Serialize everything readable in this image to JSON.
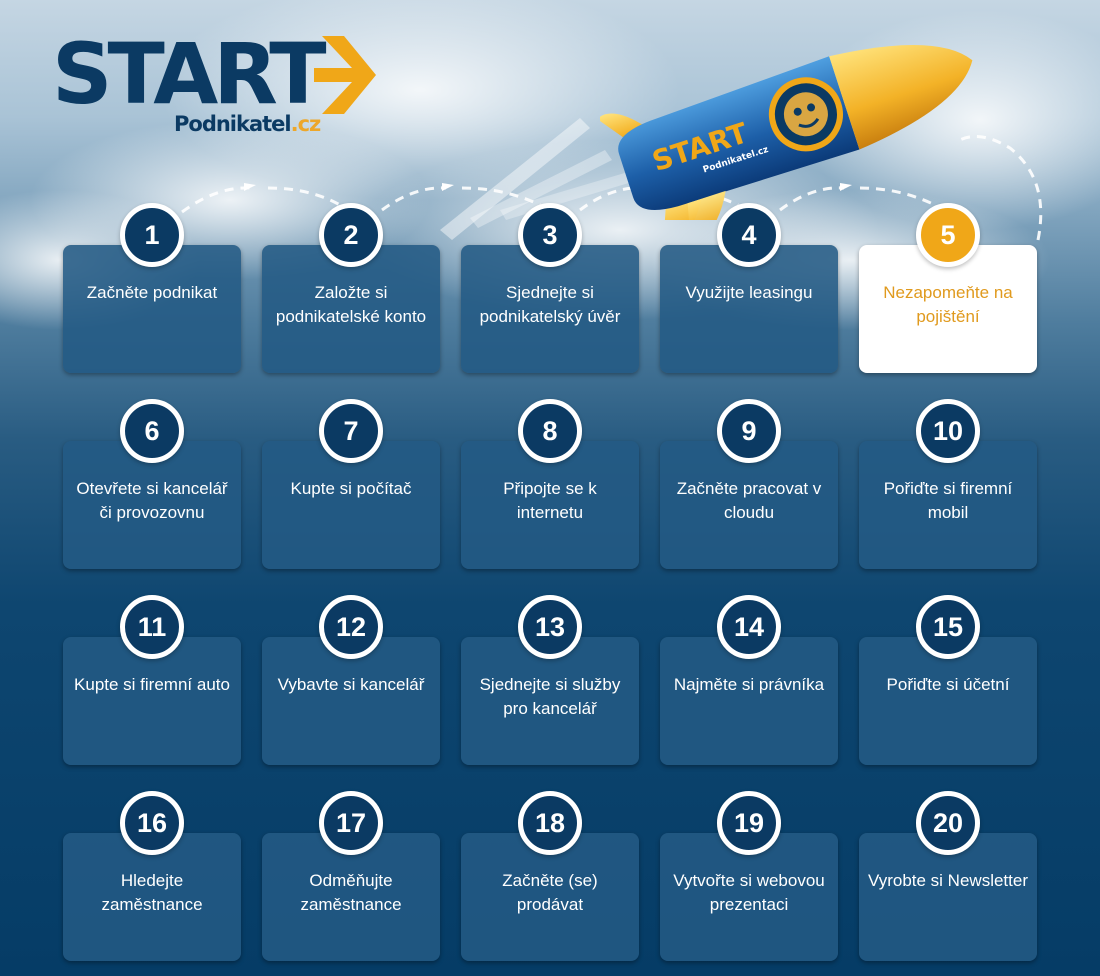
{
  "logo": {
    "brand": "START",
    "sub_main": "Podnikatel",
    "sub_tld": ".cz",
    "icon": "arrow-right-icon"
  },
  "rocket": {
    "label": "START",
    "sub": "Podnikatel.cz"
  },
  "colors": {
    "navy": "#0b3a63",
    "accent": "#f0a718",
    "tile": "#235a84",
    "active_text": "#e09a1e"
  },
  "active_step": 5,
  "steps": [
    {
      "number": "1",
      "label": "Začněte podnikat"
    },
    {
      "number": "2",
      "label": "Založte si podnikatelské konto"
    },
    {
      "number": "3",
      "label": "Sjednejte si podnikatelský úvěr"
    },
    {
      "number": "4",
      "label": "Využijte leasingu"
    },
    {
      "number": "5",
      "label": "Nezapomeňte na pojištění"
    },
    {
      "number": "6",
      "label": "Otevřete si kancelář či provozovnu"
    },
    {
      "number": "7",
      "label": "Kupte si počítač"
    },
    {
      "number": "8",
      "label": "Připojte se k internetu"
    },
    {
      "number": "9",
      "label": "Začněte pracovat v cloudu"
    },
    {
      "number": "10",
      "label": "Pořiďte si firemní mobil"
    },
    {
      "number": "11",
      "label": "Kupte si firemní auto"
    },
    {
      "number": "12",
      "label": "Vybavte si kancelář"
    },
    {
      "number": "13",
      "label": "Sjednejte si služby pro kancelář"
    },
    {
      "number": "14",
      "label": "Najměte si právníka"
    },
    {
      "number": "15",
      "label": "Pořiďte si účetní"
    },
    {
      "number": "16",
      "label": "Hledejte zaměstnance"
    },
    {
      "number": "17",
      "label": "Odměňujte zaměstnance"
    },
    {
      "number": "18",
      "label": "Začněte (se) prodávat"
    },
    {
      "number": "19",
      "label": "Vytvořte si webovou prezentaci"
    },
    {
      "number": "20",
      "label": "Vyrobte si Newsletter"
    }
  ]
}
